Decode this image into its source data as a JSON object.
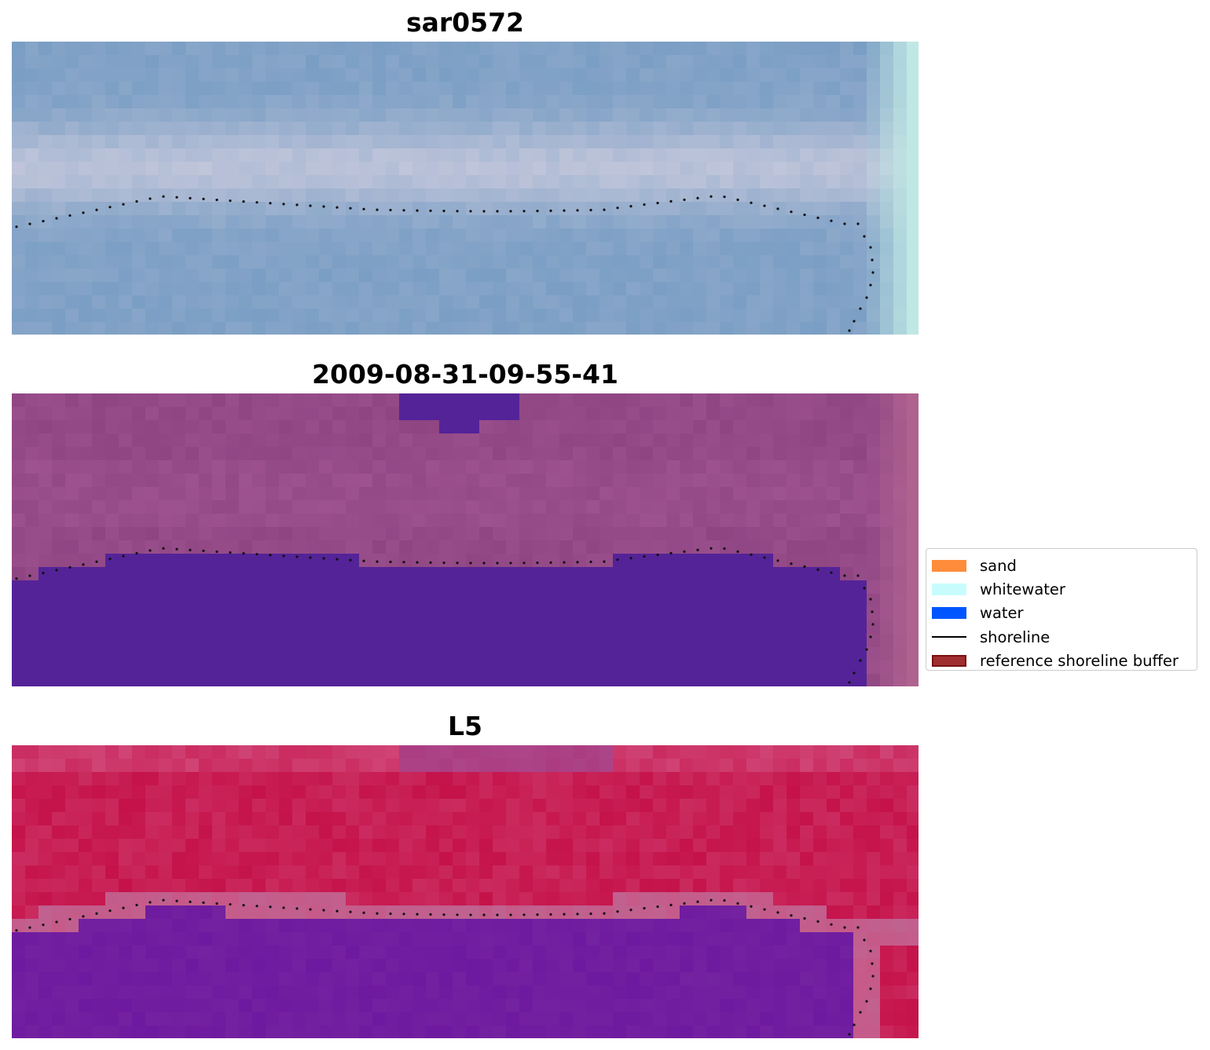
{
  "panels": [
    {
      "title": "sar0572",
      "palette": "rgb",
      "palette_colors": [
        "#7a9ec4",
        "#c5c8dc",
        "#bfe8e4"
      ]
    },
    {
      "title": "2009-08-31-09-55-41",
      "palette": "classified",
      "palette_colors": [
        "#8e4582",
        "#9e5290",
        "#542398",
        "#b0638e"
      ]
    },
    {
      "title": "L5",
      "palette": "mndwi",
      "palette_colors": [
        "#c5124a",
        "#c06290",
        "#6e1aa0",
        "#d14a7a"
      ]
    }
  ],
  "legend": {
    "items": [
      {
        "label": "sand",
        "type": "patch",
        "color": "#ff8c3a"
      },
      {
        "label": "whitewater",
        "type": "patch",
        "color": "#c8fcfc"
      },
      {
        "label": "water",
        "type": "patch",
        "color": "#0055ff"
      },
      {
        "label": "shoreline",
        "type": "line",
        "color": "#000000"
      },
      {
        "label": "reference shoreline buffer",
        "type": "patch",
        "color": "#a02e30",
        "edge": "#7a1010"
      }
    ]
  }
}
